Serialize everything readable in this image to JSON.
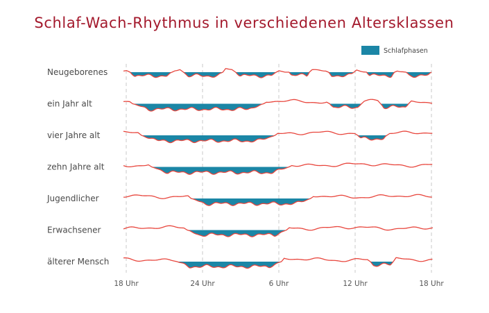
{
  "chart_data": {
    "type": "area",
    "title": "Schlaf-Wach-Rhythmus in verschiedenen Altersklassen",
    "legend": {
      "label": "Schlafphasen",
      "placement": "top-right"
    },
    "x_unit": "hours since 18 Uhr",
    "x_range": [
      0,
      24
    ],
    "x_ticks": [
      {
        "value": 0,
        "label": "18 Uhr"
      },
      {
        "value": 6,
        "label": "24 Uhr"
      },
      {
        "value": 12,
        "label": "6 Uhr"
      },
      {
        "value": 18,
        "label": "12 Uhr"
      },
      {
        "value": 24,
        "label": "18 Uhr"
      }
    ],
    "grid": true,
    "colors": {
      "sleep": "#1b86a6",
      "wake_line": "#e8453c",
      "title": "#a3192c"
    },
    "series": [
      {
        "name": "Neugeborenes",
        "sleep_phases": [
          [
            0.3,
            3.6
          ],
          [
            4.5,
            7.6
          ],
          [
            8.6,
            11.8
          ],
          [
            12.8,
            14.4
          ],
          [
            15.9,
            17.9
          ],
          [
            18.9,
            21.1
          ],
          [
            22.0,
            24.0
          ]
        ]
      },
      {
        "name": "ein Jahr alt",
        "sleep_phases": [
          [
            0.5,
            10.8
          ],
          [
            16.0,
            18.5
          ],
          [
            20.0,
            22.2
          ]
        ]
      },
      {
        "name": "vier Jahre alt",
        "sleep_phases": [
          [
            1.2,
            11.7
          ],
          [
            18.2,
            20.5
          ]
        ]
      },
      {
        "name": "zehn Jahre alt",
        "sleep_phases": [
          [
            2.0,
            12.8
          ]
        ]
      },
      {
        "name": "Jugendlicher",
        "sleep_phases": [
          [
            5.1,
            14.5
          ]
        ]
      },
      {
        "name": "Erwachsener",
        "sleep_phases": [
          [
            4.8,
            12.6
          ]
        ]
      },
      {
        "name": "älterer Mensch",
        "sleep_phases": [
          [
            4.0,
            12.2
          ],
          [
            19.2,
            21.0
          ]
        ]
      }
    ]
  }
}
